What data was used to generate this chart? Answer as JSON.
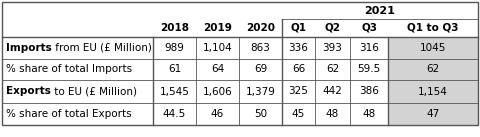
{
  "header_2021": "2021",
  "col_headers": [
    "2018",
    "2019",
    "2020",
    "Q1",
    "Q2",
    "Q3",
    "Q1 to Q3"
  ],
  "rows": [
    {
      "label_bold": "Imports",
      "label_rest": " from EU (£ Million)",
      "values": [
        "989",
        "1,104",
        "863",
        "336",
        "393",
        "316",
        "1045"
      ]
    },
    {
      "label_bold": "",
      "label_rest": "% share of total Imports",
      "values": [
        "61",
        "64",
        "69",
        "66",
        "62",
        "59.5",
        "62"
      ]
    },
    {
      "label_bold": "Exports",
      "label_rest": " to EU (£ Million)",
      "values": [
        "1,545",
        "1,606",
        "1,379",
        "325",
        "442",
        "386",
        "1,154"
      ]
    },
    {
      "label_bold": "",
      "label_rest": "% share of total Exports",
      "values": [
        "44.5",
        "46",
        "50",
        "45",
        "48",
        "48",
        "47"
      ]
    }
  ],
  "background_color": "#ffffff",
  "last_col_bg": "#d3d3d3",
  "border_color": "#555555",
  "text_color": "#000000",
  "font_size": 7.5,
  "figwidth": 4.8,
  "figheight": 1.37,
  "dpi": 100
}
